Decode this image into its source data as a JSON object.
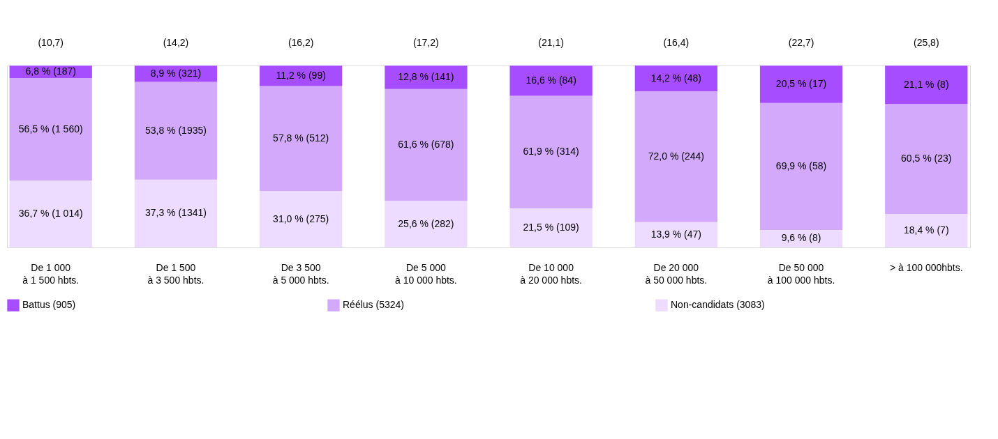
{
  "chart_data": {
    "type": "bar",
    "stacked": true,
    "legend": "bottom",
    "categories": [
      "De 1 000\nà 1 500 hbts.",
      "De 1 500\nà 3 500 hbts.",
      "De 3 500\nà 5 000 hbts.",
      "De 5 000\nà 10 000 hbts.",
      "De 10 000\nà 20 000 hbts.",
      "De 20 000\nà 50 000 hbts.",
      "De 50 000\nà 100 000 hbts.",
      "> à 100 000hbts."
    ],
    "series": [
      {
        "name": "Non-candidats (3083)",
        "color": "#eddcff",
        "values": [
          36.7,
          37.3,
          31.0,
          25.6,
          21.5,
          13.9,
          9.6,
          18.4
        ],
        "value_labels": [
          "36,7 % (1 014)",
          "37,3 % (1341)",
          "31,0 % (275)",
          "25,6 % (282)",
          "21,5 % (109)",
          "13,9 % (47)",
          "9,6 % (8)",
          "18,4 % (7)"
        ]
      },
      {
        "name": "Réélus (5324)",
        "color": "#d3a9fc",
        "values": [
          56.5,
          53.8,
          57.8,
          61.6,
          61.9,
          72.0,
          69.9,
          60.5
        ],
        "value_labels": [
          "56,5 % (1 560)",
          "53,8 % (1935)",
          "57,8 % (512)",
          "61,6 % (678)",
          "61,9 % (314)",
          "72,0 % (244)",
          "69,9 % (58)",
          "60,5 % (23)"
        ]
      },
      {
        "name": "Battus (905)",
        "color": "#a64dff",
        "values": [
          6.8,
          8.9,
          11.2,
          12.8,
          16.6,
          14.2,
          20.5,
          21.1
        ],
        "value_labels": [
          "6,8 % (187)",
          "8,9 % (321)",
          "11,2 % (99)",
          "12,8 % (141)",
          "16,6 % (84)",
          "14,2 % (48)",
          "20,5 % (17)",
          "21,1 % (8)"
        ]
      }
    ],
    "annotations": [
      "(10,7)",
      "(14,2)",
      "(16,2)",
      "(17,2)",
      "(21,1)",
      "(16,4)",
      "(22,7)",
      "(25,8)"
    ]
  }
}
